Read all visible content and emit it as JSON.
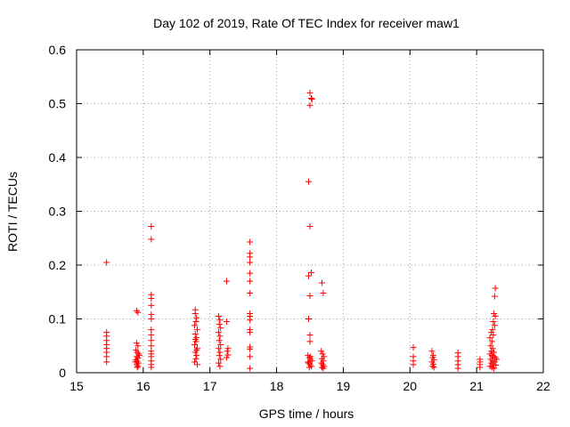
{
  "chart_data": {
    "type": "scatter",
    "title": "Day 102 of 2019, Rate Of TEC Index for receiver maw1",
    "xlabel": "GPS time / hours",
    "ylabel": "ROTI / TECUs",
    "xlim": [
      15,
      22
    ],
    "ylim": [
      0,
      0.6
    ],
    "xticks": [
      "15",
      "16",
      "17",
      "18",
      "19",
      "20",
      "21",
      "22"
    ],
    "yticks": [
      "0",
      "0.1",
      "0.2",
      "0.3",
      "0.4",
      "0.5",
      "0.6"
    ],
    "grid": true,
    "marker": "plus",
    "color": "#ff0000",
    "series": [
      {
        "points": [
          [
            15.45,
            0.205
          ],
          [
            15.45,
            0.075
          ],
          [
            15.45,
            0.068
          ],
          [
            15.45,
            0.06
          ],
          [
            15.45,
            0.052
          ],
          [
            15.45,
            0.045
          ],
          [
            15.45,
            0.038
          ],
          [
            15.45,
            0.03
          ],
          [
            15.45,
            0.02
          ],
          [
            15.9,
            0.115
          ],
          [
            15.92,
            0.112
          ],
          [
            15.9,
            0.055
          ],
          [
            15.92,
            0.05
          ],
          [
            15.89,
            0.042
          ],
          [
            15.91,
            0.038
          ],
          [
            15.93,
            0.035
          ],
          [
            15.9,
            0.03
          ],
          [
            15.92,
            0.027
          ],
          [
            15.89,
            0.024
          ],
          [
            15.91,
            0.021
          ],
          [
            15.93,
            0.018
          ],
          [
            15.9,
            0.015
          ],
          [
            15.92,
            0.012
          ],
          [
            15.91,
            0.01
          ],
          [
            15.94,
            0.032
          ],
          [
            15.88,
            0.02
          ],
          [
            16.12,
            0.272
          ],
          [
            16.12,
            0.248
          ],
          [
            16.12,
            0.145
          ],
          [
            16.12,
            0.138
          ],
          [
            16.12,
            0.125
          ],
          [
            16.12,
            0.108
          ],
          [
            16.12,
            0.1
          ],
          [
            16.12,
            0.08
          ],
          [
            16.12,
            0.07
          ],
          [
            16.12,
            0.06
          ],
          [
            16.12,
            0.05
          ],
          [
            16.12,
            0.04
          ],
          [
            16.12,
            0.035
          ],
          [
            16.12,
            0.03
          ],
          [
            16.12,
            0.022
          ],
          [
            16.12,
            0.015
          ],
          [
            16.12,
            0.01
          ],
          [
            16.78,
            0.117
          ],
          [
            16.78,
            0.11
          ],
          [
            16.8,
            0.102
          ],
          [
            16.79,
            0.095
          ],
          [
            16.77,
            0.088
          ],
          [
            16.81,
            0.08
          ],
          [
            16.78,
            0.072
          ],
          [
            16.8,
            0.065
          ],
          [
            16.79,
            0.058
          ],
          [
            16.77,
            0.052
          ],
          [
            16.81,
            0.045
          ],
          [
            16.78,
            0.038
          ],
          [
            16.8,
            0.032
          ],
          [
            16.79,
            0.026
          ],
          [
            16.77,
            0.02
          ],
          [
            16.81,
            0.015
          ],
          [
            16.8,
            0.042
          ],
          [
            16.78,
            0.062
          ],
          [
            17.13,
            0.105
          ],
          [
            17.15,
            0.098
          ],
          [
            17.14,
            0.09
          ],
          [
            17.16,
            0.083
          ],
          [
            17.13,
            0.075
          ],
          [
            17.15,
            0.068
          ],
          [
            17.14,
            0.06
          ],
          [
            17.16,
            0.052
          ],
          [
            17.13,
            0.045
          ],
          [
            17.15,
            0.038
          ],
          [
            17.14,
            0.032
          ],
          [
            17.16,
            0.025
          ],
          [
            17.13,
            0.018
          ],
          [
            17.15,
            0.012
          ],
          [
            17.25,
            0.17
          ],
          [
            17.25,
            0.095
          ],
          [
            17.27,
            0.045
          ],
          [
            17.26,
            0.04
          ],
          [
            17.27,
            0.033
          ],
          [
            17.25,
            0.028
          ],
          [
            17.6,
            0.243
          ],
          [
            17.6,
            0.222
          ],
          [
            17.6,
            0.215
          ],
          [
            17.6,
            0.205
          ],
          [
            17.6,
            0.185
          ],
          [
            17.6,
            0.17
          ],
          [
            17.6,
            0.148
          ],
          [
            17.6,
            0.11
          ],
          [
            17.6,
            0.105
          ],
          [
            17.6,
            0.098
          ],
          [
            17.6,
            0.08
          ],
          [
            17.6,
            0.075
          ],
          [
            17.6,
            0.048
          ],
          [
            17.6,
            0.044
          ],
          [
            17.6,
            0.03
          ],
          [
            17.6,
            0.008
          ],
          [
            18.5,
            0.52
          ],
          [
            18.52,
            0.51
          ],
          [
            18.53,
            0.508
          ],
          [
            18.5,
            0.497
          ],
          [
            18.48,
            0.355
          ],
          [
            18.5,
            0.272
          ],
          [
            18.52,
            0.186
          ],
          [
            18.48,
            0.18
          ],
          [
            18.5,
            0.143
          ],
          [
            18.48,
            0.1
          ],
          [
            18.5,
            0.07
          ],
          [
            18.5,
            0.058
          ],
          [
            18.47,
            0.032
          ],
          [
            18.49,
            0.028
          ],
          [
            18.51,
            0.025
          ],
          [
            18.53,
            0.022
          ],
          [
            18.48,
            0.018
          ],
          [
            18.5,
            0.015
          ],
          [
            18.52,
            0.012
          ],
          [
            18.49,
            0.01
          ],
          [
            18.51,
            0.03
          ],
          [
            18.47,
            0.02
          ],
          [
            18.68,
            0.167
          ],
          [
            18.7,
            0.148
          ],
          [
            18.67,
            0.04
          ],
          [
            18.69,
            0.035
          ],
          [
            18.71,
            0.03
          ],
          [
            18.68,
            0.026
          ],
          [
            18.7,
            0.022
          ],
          [
            18.67,
            0.018
          ],
          [
            18.69,
            0.015
          ],
          [
            18.71,
            0.012
          ],
          [
            18.68,
            0.01
          ],
          [
            18.7,
            0.008
          ],
          [
            20.05,
            0.047
          ],
          [
            20.05,
            0.03
          ],
          [
            20.05,
            0.022
          ],
          [
            20.05,
            0.015
          ],
          [
            20.33,
            0.04
          ],
          [
            20.35,
            0.032
          ],
          [
            20.34,
            0.028
          ],
          [
            20.36,
            0.024
          ],
          [
            20.33,
            0.02
          ],
          [
            20.35,
            0.016
          ],
          [
            20.34,
            0.012
          ],
          [
            20.36,
            0.01
          ],
          [
            20.72,
            0.037
          ],
          [
            20.72,
            0.03
          ],
          [
            20.72,
            0.022
          ],
          [
            20.72,
            0.015
          ],
          [
            20.72,
            0.008
          ],
          [
            21.05,
            0.025
          ],
          [
            21.05,
            0.02
          ],
          [
            21.05,
            0.015
          ],
          [
            21.05,
            0.01
          ],
          [
            21.28,
            0.157
          ],
          [
            21.27,
            0.142
          ],
          [
            21.26,
            0.11
          ],
          [
            21.28,
            0.105
          ],
          [
            21.25,
            0.095
          ],
          [
            21.27,
            0.088
          ],
          [
            21.24,
            0.08
          ],
          [
            21.22,
            0.075
          ],
          [
            21.25,
            0.07
          ],
          [
            21.2,
            0.065
          ],
          [
            21.23,
            0.058
          ],
          [
            21.21,
            0.05
          ],
          [
            21.24,
            0.045
          ],
          [
            21.22,
            0.04
          ],
          [
            21.26,
            0.038
          ],
          [
            21.2,
            0.035
          ],
          [
            21.23,
            0.032
          ],
          [
            21.25,
            0.03
          ],
          [
            21.28,
            0.028
          ],
          [
            21.21,
            0.025
          ],
          [
            21.24,
            0.022
          ],
          [
            21.27,
            0.02
          ],
          [
            21.22,
            0.018
          ],
          [
            21.25,
            0.015
          ],
          [
            21.29,
            0.014
          ],
          [
            21.2,
            0.012
          ],
          [
            21.23,
            0.01
          ],
          [
            21.26,
            0.008
          ],
          [
            21.3,
            0.025
          ]
        ]
      }
    ]
  }
}
